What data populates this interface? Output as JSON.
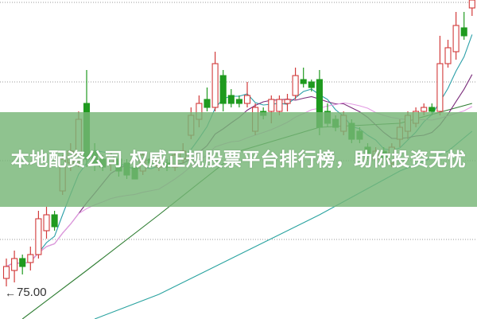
{
  "banner": {
    "headline": "本地配资公司 权威正规股票平台排行榜，助你投资无忧"
  },
  "chart_data": {
    "type": "candlestick",
    "title": "",
    "xlabel": "",
    "ylabel": "",
    "ylim": [
      73.35,
      93.4
    ],
    "grid": "horizontal dotted",
    "annotation": {
      "label": "75.00",
      "value": 75.0,
      "icon": "left-arrow-icon"
    },
    "colors": {
      "up": "#d23a3a",
      "down": "#1f9a1f",
      "ma5": "#2a9fa8",
      "ma10": "#7b2d7b",
      "ma20": "#e39ae3",
      "ma_long_1": "#2e7d32",
      "ma_long_2": "#2aa3a0",
      "grid": "#999999",
      "banner": "#76b676"
    },
    "candles_ohlc_order": [
      "open",
      "close",
      "high",
      "low"
    ],
    "candles": [
      [
        75.9,
        76.65,
        77.15,
        75.4
      ],
      [
        76.4,
        77.15,
        77.65,
        75.65
      ],
      [
        77.15,
        76.65,
        77.4,
        76.15
      ],
      [
        76.9,
        77.4,
        77.9,
        76.4
      ],
      [
        77.4,
        79.65,
        80.15,
        77.15
      ],
      [
        78.9,
        79.9,
        80.4,
        78.4
      ],
      [
        79.9,
        79.15,
        80.15,
        78.9
      ],
      [
        81.4,
        83.4,
        83.65,
        81.15
      ],
      [
        83.15,
        83.9,
        84.4,
        82.65
      ],
      [
        83.4,
        85.9,
        86.4,
        82.9
      ],
      [
        86.9,
        83.4,
        89.0,
        82.9
      ],
      [
        83.9,
        83.15,
        84.4,
        82.65
      ],
      [
        83.4,
        82.9,
        83.65,
        82.65
      ],
      [
        83.15,
        83.65,
        83.9,
        82.65
      ],
      [
        83.4,
        82.65,
        83.65,
        82.3
      ],
      [
        83.15,
        82.4,
        83.4,
        82.15
      ],
      [
        82.9,
        82.15,
        83.15,
        82.15
      ],
      [
        82.65,
        83.65,
        83.9,
        82.4
      ],
      [
        83.4,
        83.15,
        83.65,
        82.9
      ],
      [
        82.9,
        83.4,
        83.65,
        82.65
      ],
      [
        83.15,
        82.9,
        83.4,
        82.65
      ],
      [
        82.9,
        83.65,
        83.9,
        82.65
      ],
      [
        83.4,
        83.9,
        84.4,
        83.15
      ],
      [
        84.9,
        86.15,
        86.65,
        84.65
      ],
      [
        85.9,
        86.9,
        87.4,
        85.4
      ],
      [
        87.15,
        86.65,
        87.9,
        86.4
      ],
      [
        86.65,
        89.4,
        90.15,
        86.4
      ],
      [
        88.65,
        86.9,
        89.0,
        86.4
      ],
      [
        87.4,
        86.9,
        87.8,
        86.65
      ],
      [
        87.15,
        86.9,
        87.4,
        86.65
      ],
      [
        86.9,
        87.4,
        88.25,
        86.65
      ],
      [
        85.15,
        86.65,
        86.9,
        84.9
      ],
      [
        86.4,
        86.15,
        86.65,
        85.9
      ],
      [
        86.4,
        87.15,
        87.4,
        85.65
      ],
      [
        86.4,
        87.15,
        87.4,
        86.15
      ],
      [
        86.9,
        87.15,
        87.5,
        86.4
      ],
      [
        87.4,
        88.65,
        89.15,
        87.15
      ],
      [
        88.4,
        88.15,
        89.15,
        87.9
      ],
      [
        88.25,
        87.9,
        88.4,
        87.65
      ],
      [
        88.4,
        85.4,
        89.0,
        84.9
      ],
      [
        86.4,
        85.65,
        86.9,
        85.4
      ],
      [
        85.9,
        85.4,
        86.15,
        85.15
      ],
      [
        85.15,
        86.15,
        86.4,
        84.9
      ],
      [
        85.65,
        84.65,
        85.9,
        84.4
      ],
      [
        85.15,
        84.65,
        85.4,
        84.4
      ],
      [
        84.15,
        83.65,
        84.4,
        83.4
      ],
      [
        83.4,
        83.9,
        84.15,
        83.15
      ],
      [
        83.9,
        83.4,
        84.15,
        83.15
      ],
      [
        83.15,
        84.15,
        84.4,
        82.9
      ],
      [
        84.65,
        85.4,
        85.9,
        84.15
      ],
      [
        85.15,
        86.15,
        86.4,
        84.65
      ],
      [
        85.65,
        86.4,
        86.65,
        85.4
      ],
      [
        86.4,
        86.65,
        86.9,
        86.15
      ],
      [
        86.65,
        86.4,
        86.9,
        86.15
      ],
      [
        86.4,
        89.4,
        91.15,
        86.15
      ],
      [
        89.4,
        90.4,
        90.9,
        89.15
      ],
      [
        90.15,
        91.8,
        92.65,
        89.65
      ],
      [
        91.65,
        91.15,
        92.65,
        90.9
      ],
      [
        92.9,
        93.4,
        93.4,
        92.4
      ]
    ],
    "ma_long_series": [
      {
        "points": [
          [
            2,
            73.35
          ],
          [
            10,
            76.4
          ],
          [
            19,
            79.9
          ],
          [
            29,
            83.9
          ],
          [
            39,
            85.4
          ],
          [
            49,
            85.65
          ],
          [
            58,
            86.9
          ]
        ]
      },
      {
        "points": [
          [
            11,
            73.35
          ],
          [
            19,
            74.9
          ],
          [
            29,
            77.4
          ],
          [
            39,
            79.9
          ],
          [
            49,
            82.65
          ],
          [
            55,
            83.9
          ],
          [
            58,
            85.15
          ]
        ]
      }
    ]
  }
}
